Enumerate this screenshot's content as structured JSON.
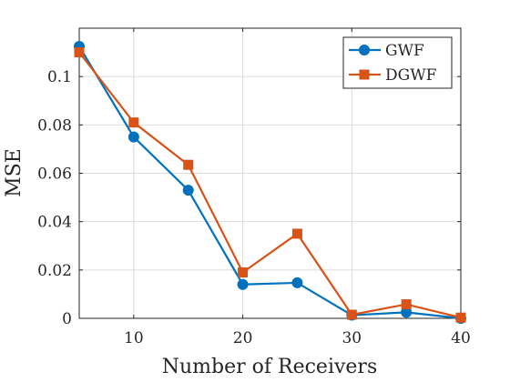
{
  "chart_data": {
    "type": "line",
    "xlabel": "Number of Receivers",
    "ylabel": "MSE",
    "xlim": [
      5,
      40
    ],
    "ylim": [
      0,
      0.12
    ],
    "xticks": [
      10,
      20,
      30,
      40
    ],
    "xtick_labels": [
      "10",
      "20",
      "30",
      "40"
    ],
    "yticks": [
      0,
      0.02,
      0.04,
      0.06,
      0.08,
      0.1
    ],
    "ytick_labels": [
      "0",
      "0.02",
      "0.04",
      "0.06",
      "0.08",
      "0.1"
    ],
    "grid": true,
    "legend_position": "top-right",
    "x": [
      5,
      10,
      15,
      20,
      25,
      30,
      35,
      40
    ],
    "series": [
      {
        "name": "GWF",
        "values": [
          0.1125,
          0.075,
          0.053,
          0.014,
          0.0147,
          0.0013,
          0.0025,
          0.0
        ],
        "color": "#0072BD",
        "marker": "circle"
      },
      {
        "name": "DGWF",
        "values": [
          0.11,
          0.081,
          0.0635,
          0.019,
          0.035,
          0.0015,
          0.0058,
          0.0003
        ],
        "color": "#D95319",
        "marker": "square"
      }
    ]
  }
}
